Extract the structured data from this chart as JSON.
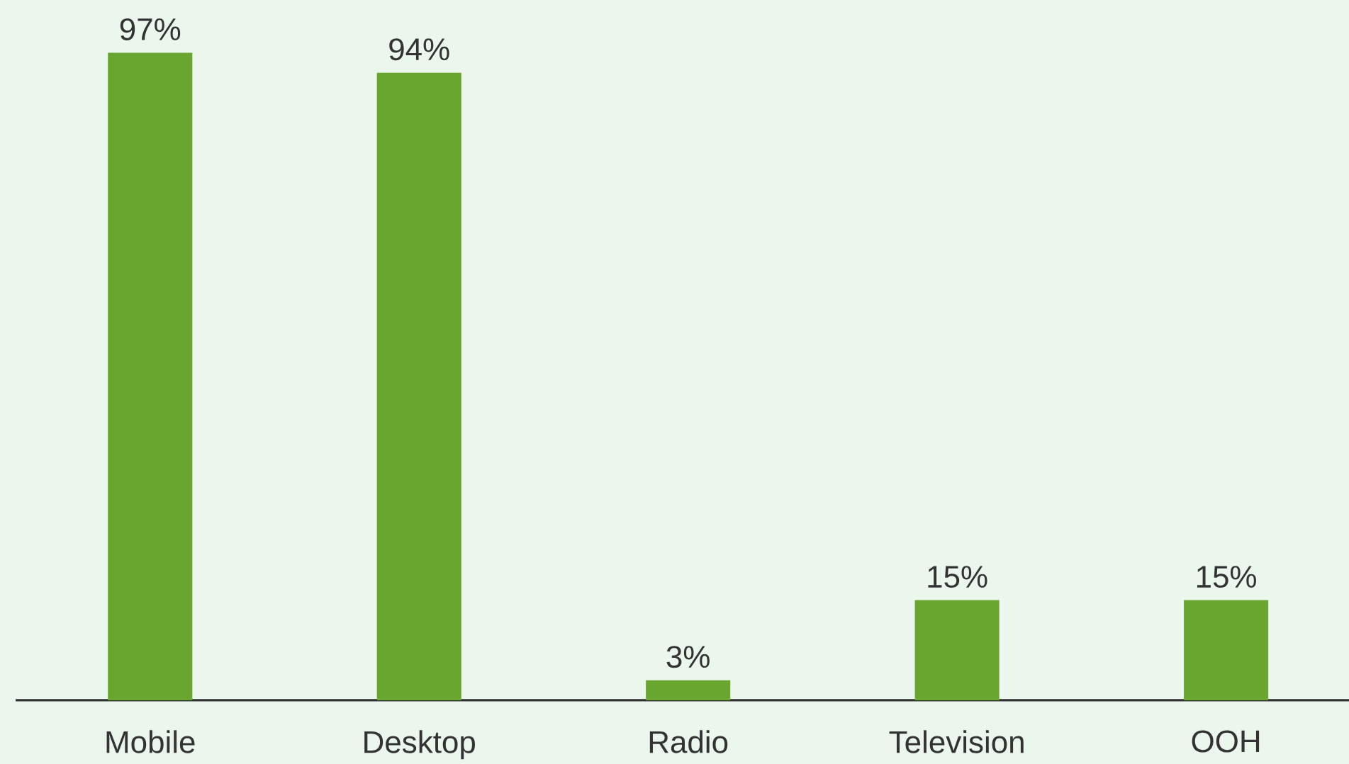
{
  "chart_data": {
    "type": "bar",
    "categories": [
      "Mobile",
      "Desktop",
      "Radio",
      "Television",
      "OOH"
    ],
    "values": [
      97,
      94,
      3,
      15,
      15
    ],
    "value_labels": [
      "97%",
      "94%",
      "3%",
      "15%",
      "15%"
    ],
    "color": "#68a62f"
  }
}
